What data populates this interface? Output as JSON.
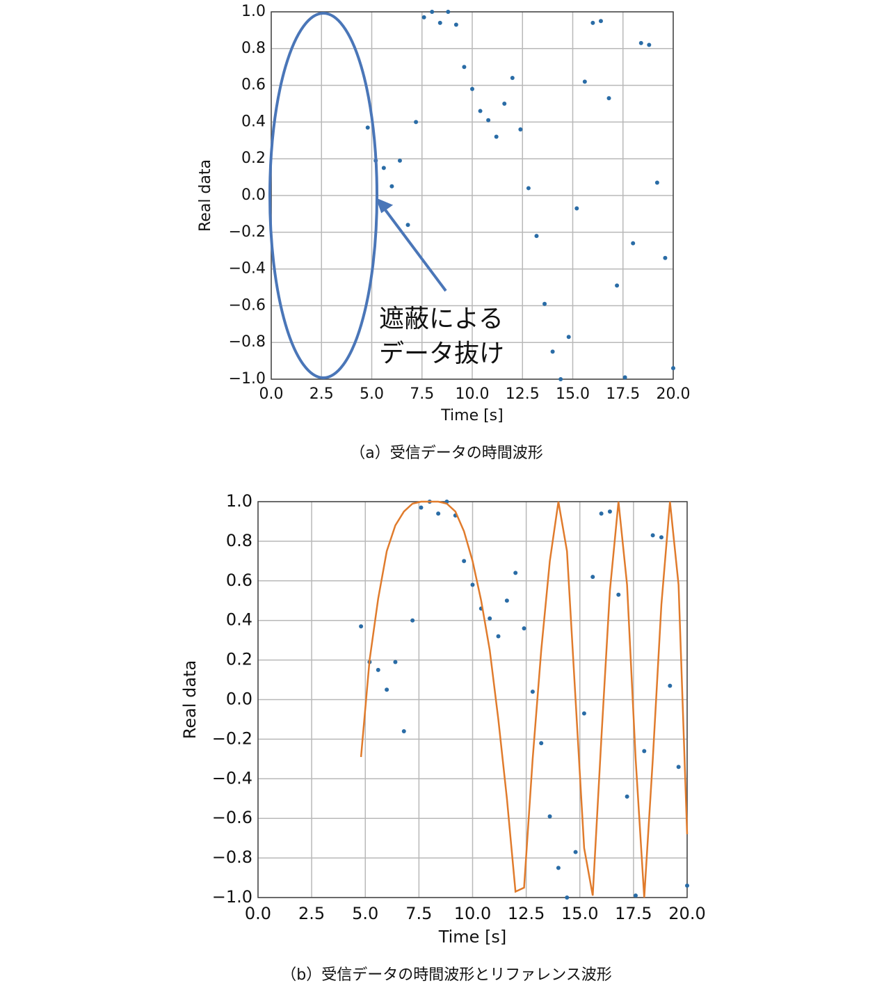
{
  "chart_data": [
    {
      "type": "scatter",
      "caption": "（a）受信データの時間波形",
      "xlabel": "Time [s]",
      "ylabel": "Real data",
      "annotation": [
        "遮蔽による",
        "データ抜け"
      ],
      "x": [
        4.8,
        5.2,
        5.6,
        6.0,
        6.4,
        6.8,
        7.2,
        7.6,
        8.0,
        8.4,
        8.8,
        9.2,
        9.6,
        10.0,
        10.4,
        10.8,
        11.2,
        11.6,
        12.0,
        12.4,
        12.8,
        13.2,
        13.6,
        14.0,
        14.4,
        14.8,
        15.2,
        15.6,
        16.0,
        16.4,
        16.8,
        17.2,
        17.6,
        18.0,
        18.4,
        18.8,
        19.2,
        19.6,
        20.0
      ],
      "series": [
        {
          "name": "Real data",
          "type": "scatter",
          "color": "#2a6ca6",
          "values": [
            0.37,
            0.19,
            0.15,
            0.05,
            0.19,
            -0.16,
            0.4,
            0.97,
            1.0,
            0.94,
            1.0,
            0.93,
            0.7,
            0.58,
            0.46,
            0.41,
            0.32,
            0.5,
            0.64,
            0.36,
            0.04,
            -0.22,
            -0.59,
            -0.85,
            -1.0,
            -0.77,
            -0.07,
            0.62,
            0.94,
            0.95,
            0.53,
            -0.49,
            -0.99,
            -0.26,
            0.83,
            0.82,
            0.07,
            -0.34,
            -0.94
          ]
        }
      ],
      "xlim": [
        0,
        20
      ],
      "ylim": [
        -1,
        1
      ],
      "xticks": [
        {
          "value": 0,
          "label": "0.0"
        },
        {
          "value": 2.5,
          "label": "2.5"
        },
        {
          "value": 5,
          "label": "5.0"
        },
        {
          "value": 7.5,
          "label": "7.5"
        },
        {
          "value": 10,
          "label": "10.0"
        },
        {
          "value": 12.5,
          "label": "12.5"
        },
        {
          "value": 15,
          "label": "15.0"
        },
        {
          "value": 17.5,
          "label": "17.5"
        },
        {
          "value": 20,
          "label": "20.0"
        }
      ],
      "yticks": [
        {
          "value": -1,
          "label": "−1.0"
        },
        {
          "value": -0.8,
          "label": "−0.8"
        },
        {
          "value": -0.6,
          "label": "−0.6"
        },
        {
          "value": -0.4,
          "label": "−0.4"
        },
        {
          "value": -0.2,
          "label": "−0.2"
        },
        {
          "value": 0,
          "label": "0.0"
        },
        {
          "value": 0.2,
          "label": "0.2"
        },
        {
          "value": 0.4,
          "label": "0.4"
        },
        {
          "value": 0.6,
          "label": "0.6"
        },
        {
          "value": 0.8,
          "label": "0.8"
        },
        {
          "value": 1,
          "label": "1.0"
        }
      ],
      "grid": true
    },
    {
      "type": "scatter",
      "caption": "（b）受信データの時間波形とリファレンス波形",
      "xlabel": "Time [s]",
      "ylabel": "Real data",
      "x": [
        4.8,
        5.2,
        5.6,
        6.0,
        6.4,
        6.8,
        7.2,
        7.6,
        8.0,
        8.4,
        8.8,
        9.2,
        9.6,
        10.0,
        10.4,
        10.8,
        11.2,
        11.6,
        12.0,
        12.4,
        12.8,
        13.2,
        13.6,
        14.0,
        14.4,
        14.8,
        15.2,
        15.6,
        16.0,
        16.4,
        16.8,
        17.2,
        17.6,
        18.0,
        18.4,
        18.8,
        19.2,
        19.6,
        20.0
      ],
      "series": [
        {
          "name": "Real data",
          "type": "scatter",
          "color": "#2a6ca6",
          "values": [
            0.37,
            0.19,
            0.15,
            0.05,
            0.19,
            -0.16,
            0.4,
            0.97,
            1.0,
            0.94,
            1.0,
            0.93,
            0.7,
            0.58,
            0.46,
            0.41,
            0.32,
            0.5,
            0.64,
            0.36,
            0.04,
            -0.22,
            -0.59,
            -0.85,
            -1.0,
            -0.77,
            -0.07,
            0.62,
            0.94,
            0.95,
            0.53,
            -0.49,
            -0.99,
            -0.26,
            0.83,
            0.82,
            0.07,
            -0.34,
            -0.94
          ]
        },
        {
          "name": "Reference",
          "type": "line",
          "color": "#e07b2c",
          "values": [
            -0.29,
            0.2,
            0.51,
            0.75,
            0.88,
            0.95,
            0.99,
            1.0,
            1.0,
            1.0,
            0.99,
            0.95,
            0.85,
            0.7,
            0.5,
            0.25,
            -0.1,
            -0.5,
            -0.97,
            -0.95,
            -0.3,
            0.25,
            0.7,
            1.0,
            0.75,
            0.0,
            -0.75,
            -0.99,
            -0.2,
            0.55,
            1.0,
            0.58,
            -0.3,
            -1.0,
            -0.3,
            0.48,
            1.0,
            0.58,
            -0.68
          ]
        }
      ],
      "xlim": [
        0,
        20
      ],
      "ylim": [
        -1,
        1
      ],
      "xticks": [
        {
          "value": 0,
          "label": "0.0"
        },
        {
          "value": 2.5,
          "label": "2.5"
        },
        {
          "value": 5,
          "label": "5.0"
        },
        {
          "value": 7.5,
          "label": "7.5"
        },
        {
          "value": 10,
          "label": "10.0"
        },
        {
          "value": 12.5,
          "label": "12.5"
        },
        {
          "value": 15,
          "label": "15.0"
        },
        {
          "value": 17.5,
          "label": "17.5"
        },
        {
          "value": 20,
          "label": "20.0"
        }
      ],
      "yticks": [
        {
          "value": -1,
          "label": "−1.0"
        },
        {
          "value": -0.8,
          "label": "−0.8"
        },
        {
          "value": -0.6,
          "label": "−0.6"
        },
        {
          "value": -0.4,
          "label": "−0.4"
        },
        {
          "value": -0.2,
          "label": "−0.2"
        },
        {
          "value": 0,
          "label": "0.0"
        },
        {
          "value": 0.2,
          "label": "0.2"
        },
        {
          "value": 0.4,
          "label": "0.4"
        },
        {
          "value": 0.6,
          "label": "0.6"
        },
        {
          "value": 0.8,
          "label": "0.8"
        },
        {
          "value": 1,
          "label": "1.0"
        }
      ],
      "grid": true
    }
  ]
}
